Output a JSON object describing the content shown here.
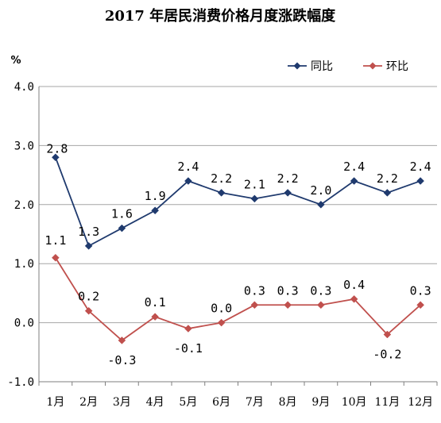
{
  "chart_data": {
    "type": "line",
    "title": "2017 年居民消费价格月度涨跌幅度",
    "unit_label": "%",
    "categories": [
      "1月",
      "2月",
      "3月",
      "4月",
      "5月",
      "6月",
      "7月",
      "8月",
      "9月",
      "10月",
      "11月",
      "12月"
    ],
    "ylim": [
      -1.0,
      4.0
    ],
    "yticks": [
      "4.0",
      "3.0",
      "2.0",
      "1.0",
      "0.0",
      "-1.0"
    ],
    "grid": true,
    "legend_position": "top-right",
    "series": [
      {
        "name": "同比",
        "color": "#1f3a6e",
        "marker": "diamond",
        "values": [
          2.8,
          1.3,
          1.6,
          1.9,
          2.4,
          2.2,
          2.1,
          2.2,
          2.0,
          2.4,
          2.2,
          2.4
        ],
        "labels": [
          "2.8",
          "1.3",
          "1.6",
          "1.9",
          "2.4",
          "2.2",
          "2.1",
          "2.2",
          "2.0",
          "2.4",
          "2.2",
          "2.4"
        ]
      },
      {
        "name": "环比",
        "color": "#c0504d",
        "marker": "diamond",
        "values": [
          1.1,
          0.2,
          -0.3,
          0.1,
          -0.1,
          0.0,
          0.3,
          0.3,
          0.3,
          0.4,
          -0.2,
          0.3
        ],
        "labels": [
          "1.1",
          "0.2",
          "-0.3",
          "0.1",
          "-0.1",
          "0.0",
          "0.3",
          "0.3",
          "0.3",
          "0.4",
          "-0.2",
          "0.3"
        ]
      }
    ]
  }
}
